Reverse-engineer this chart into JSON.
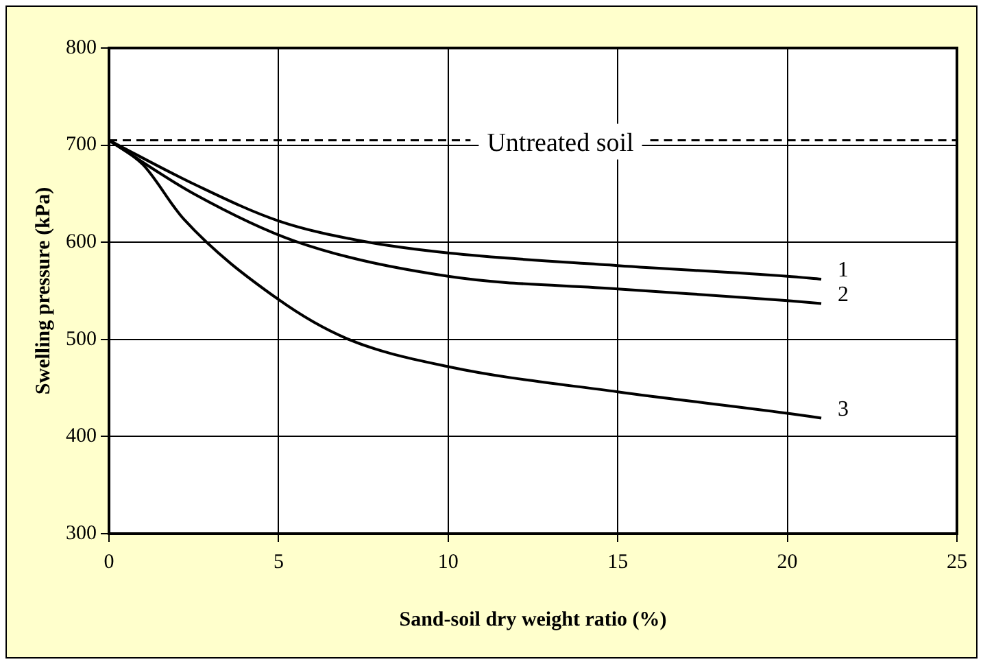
{
  "chart_data": {
    "type": "line",
    "xlabel": "Sand-soil dry weight ratio (%)",
    "ylabel": "Swelling pressure (kPa)",
    "xlim": [
      0,
      25
    ],
    "xticks": [
      0,
      5,
      10,
      15,
      20,
      25
    ],
    "ylim": [
      300,
      800
    ],
    "yticks": [
      300,
      400,
      500,
      600,
      700,
      800
    ],
    "grid": true,
    "legend": false,
    "marker": "none",
    "line_style": "solid",
    "series": [
      {
        "name": "1",
        "color": "#000000",
        "x": [
          0,
          2.5,
          5,
          7.5,
          10,
          15,
          20,
          21
        ],
        "values": [
          705,
          660,
          622,
          601,
          589,
          576,
          565,
          562
        ]
      },
      {
        "name": "2",
        "color": "#000000",
        "x": [
          0,
          2.5,
          5.5,
          10,
          15,
          20,
          21
        ],
        "values": [
          705,
          650,
          601,
          565,
          552,
          540,
          537
        ]
      },
      {
        "name": "3",
        "color": "#000000",
        "x": [
          0,
          1,
          2.2,
          5,
          7,
          10,
          15,
          20,
          21
        ],
        "values": [
          705,
          680,
          624,
          541,
          501,
          472,
          446,
          424,
          419
        ]
      }
    ],
    "ref_lines": [
      {
        "axis": "y",
        "value": 705,
        "label": "Untreated soil",
        "color": "#000000",
        "line_style": "dashed"
      }
    ]
  }
}
